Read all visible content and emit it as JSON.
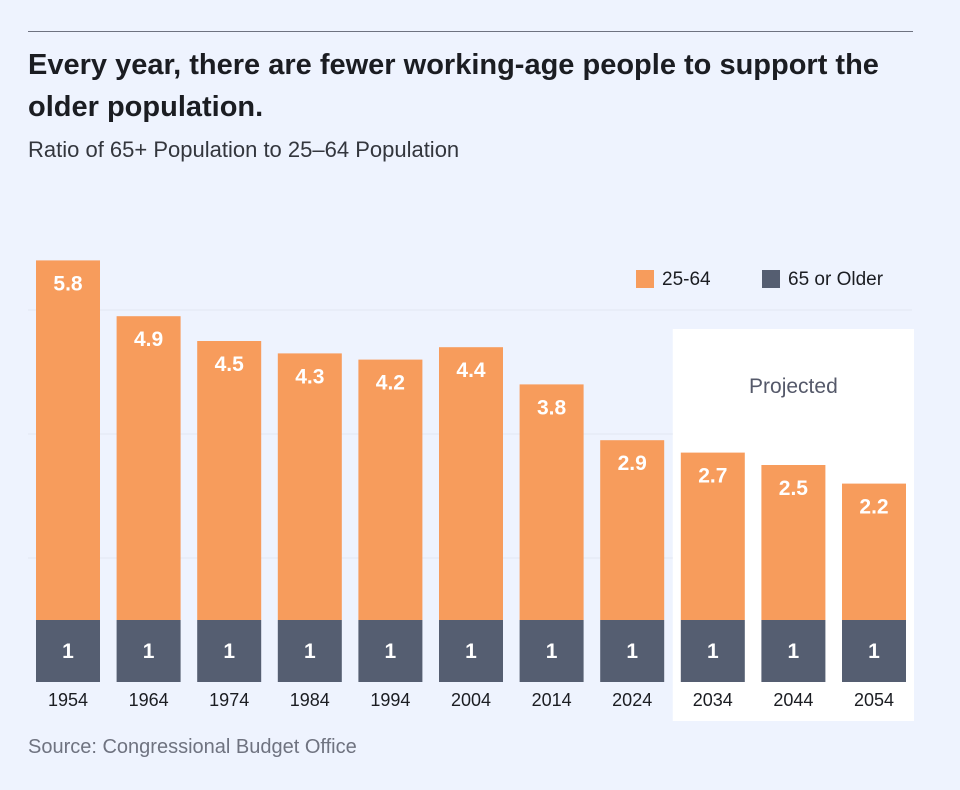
{
  "header": {
    "title": "Every year, there are fewer working-age people to support the older population.",
    "subtitle": "Ratio of 65+ Population to 25–64 Population"
  },
  "footer": {
    "source": "Source: Congressional Budget Office"
  },
  "chart_data": {
    "type": "bar",
    "stacked": true,
    "categories": [
      "1954",
      "1964",
      "1974",
      "1984",
      "1994",
      "2004",
      "2014",
      "2024",
      "2034",
      "2044",
      "2054"
    ],
    "series": [
      {
        "name": "65 or Older",
        "values": [
          1,
          1,
          1,
          1,
          1,
          1,
          1,
          1,
          1,
          1,
          1
        ],
        "color": "#555e71"
      },
      {
        "name": "25-64",
        "values": [
          5.8,
          4.9,
          4.5,
          4.3,
          4.2,
          4.4,
          3.8,
          2.9,
          2.7,
          2.5,
          2.2
        ],
        "color": "#f79c5c"
      }
    ],
    "title": "Every year, there are fewer working-age people to support the older population.",
    "subtitle": "Ratio of 65+ Population to 25–64 Population",
    "xlabel": "",
    "ylabel": "",
    "ylim": [
      0,
      6.8
    ],
    "grid": true,
    "legend": "top-right",
    "annotation": {
      "text": "Projected",
      "from_category": "2034",
      "to_category": "2054",
      "background": "#ffffff"
    },
    "colors": {
      "background": "#eef3fe",
      "gridline": "#e2e7f2"
    }
  }
}
